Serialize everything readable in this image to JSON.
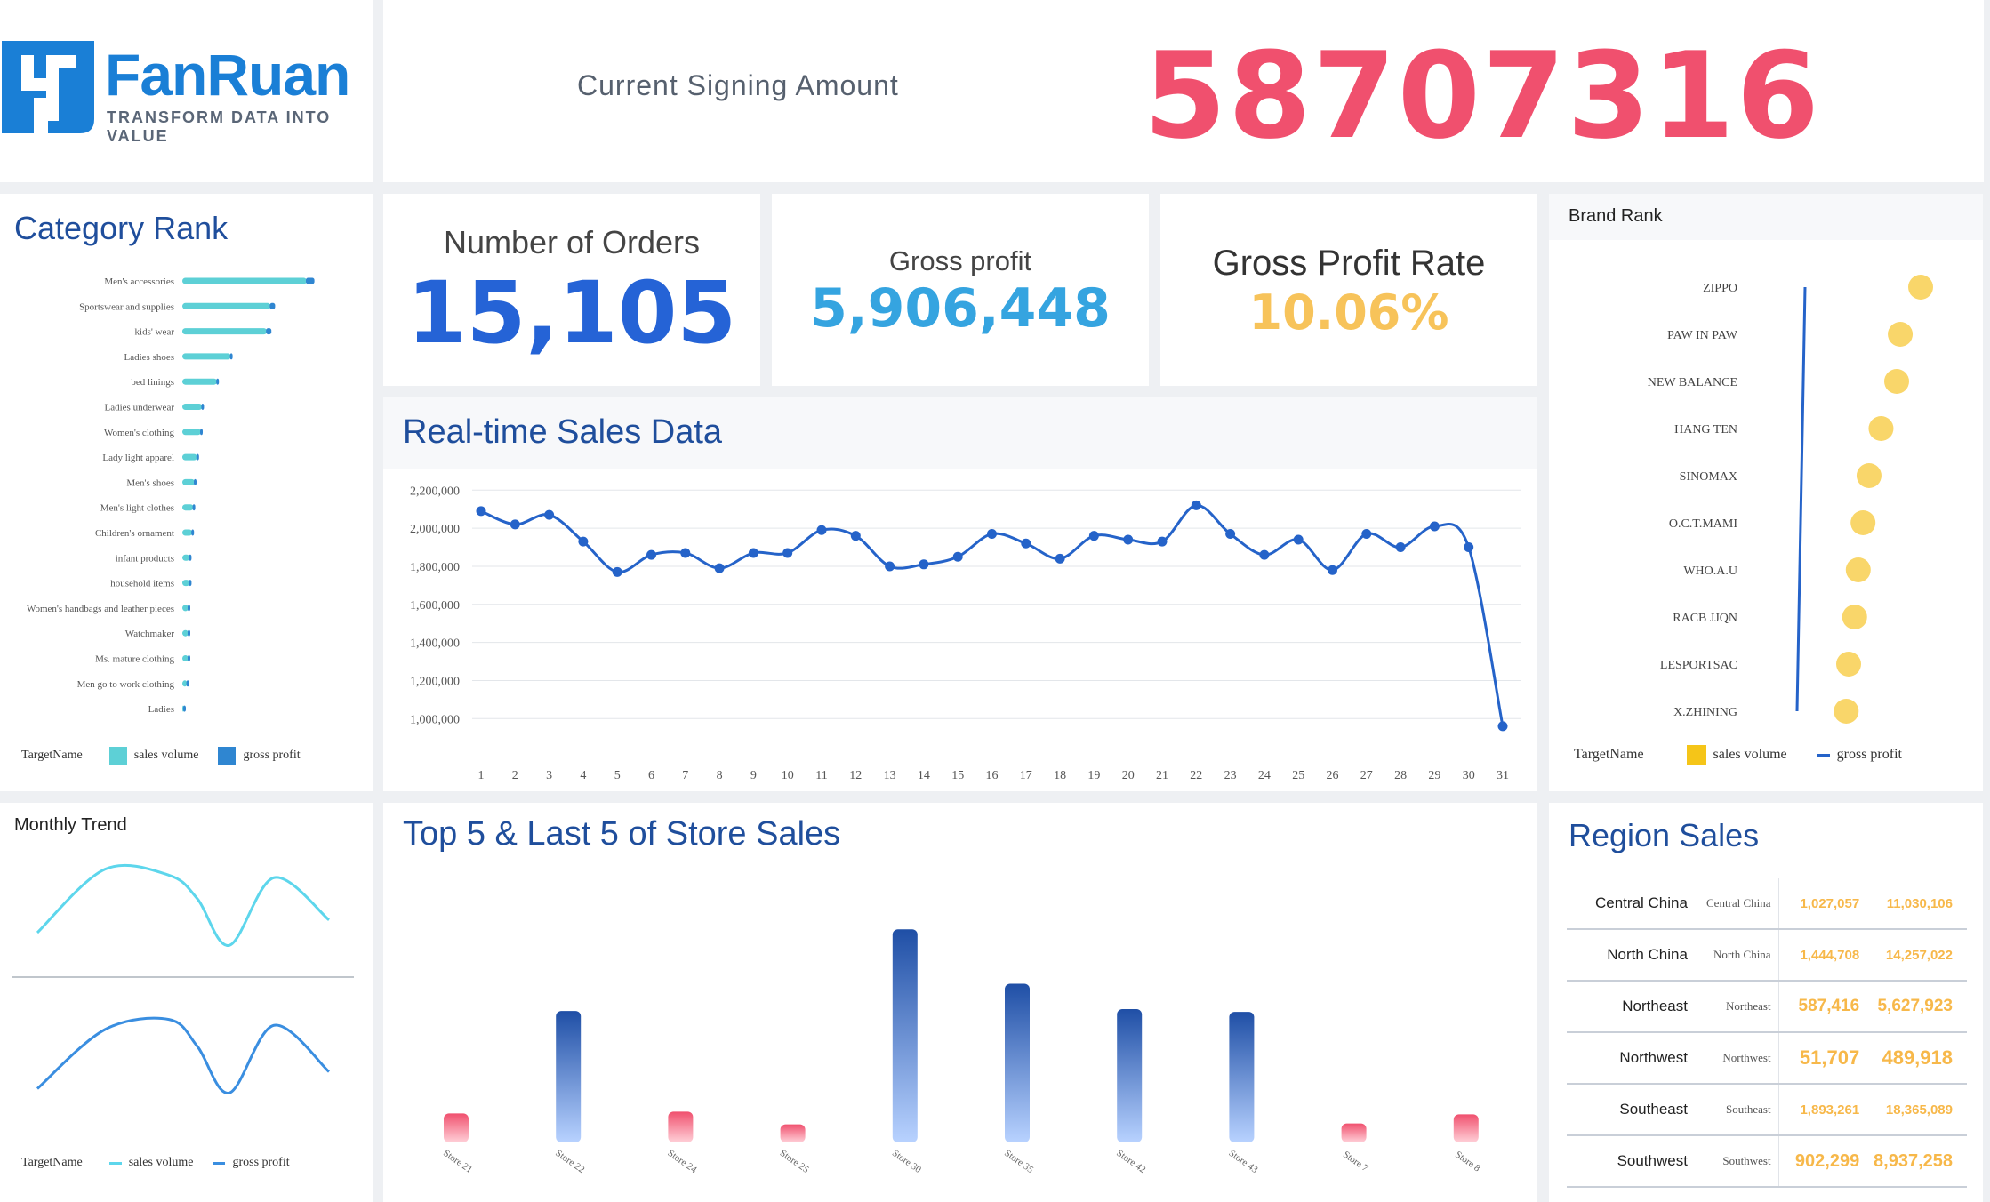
{
  "logo": {
    "name": "FanRuan",
    "tagline": "TRANSFORM DATA INTO VALUE",
    "color": "#1a7fd6"
  },
  "header": {
    "label": "Current Signing Amount",
    "amount": "58707316",
    "amount_color": "#f0506e"
  },
  "kpis": {
    "orders": {
      "label": "Number of Orders",
      "value": "15,105",
      "color": "#2563d6"
    },
    "gross_profit": {
      "label": "Gross profit",
      "value": "5,906,448",
      "color": "#35a4e0"
    },
    "gross_rate": {
      "label": "Gross Profit Rate",
      "value": "10.06%",
      "color": "#f7c35a"
    }
  },
  "category_rank": {
    "title": "Category Rank",
    "legend": {
      "target": "TargetName",
      "a": "sales volume",
      "b": "gross profit"
    },
    "chart_data": {
      "type": "bar",
      "categories": [
        "Men's accessories",
        "Sportswear and supplies",
        "kids' wear",
        "Ladies shoes",
        "bed linings",
        "Ladies underwear",
        "Women's clothing",
        "Lady light apparel",
        "Men's shoes",
        "Men's light clothes",
        "Children's ornament",
        "infant products",
        "household items",
        "Women's handbags and leather pieces",
        "Watchmaker",
        "Ms. mature clothing",
        "Men go to work clothing",
        "Ladies"
      ],
      "series": [
        {
          "name": "sales volume",
          "color": "#5dd0d6",
          "values": [
            100,
            71,
            68,
            39,
            28,
            16,
            15,
            12,
            10,
            9,
            8,
            6,
            6,
            5,
            5,
            5,
            4,
            1
          ]
        },
        {
          "name": "gross profit",
          "color": "#2f86d1",
          "values": [
            8,
            5,
            5,
            2,
            2,
            2,
            1,
            1,
            1,
            1,
            1,
            1,
            1,
            1,
            1,
            1,
            1,
            1
          ]
        }
      ]
    }
  },
  "realtime": {
    "title": "Real-time Sales Data",
    "chart_data": {
      "type": "line",
      "x": [
        1,
        2,
        3,
        4,
        5,
        6,
        7,
        8,
        9,
        10,
        11,
        12,
        13,
        14,
        15,
        16,
        17,
        18,
        19,
        20,
        21,
        22,
        23,
        24,
        25,
        26,
        27,
        28,
        29,
        30,
        31
      ],
      "values": [
        2090000,
        2020000,
        2070000,
        1930000,
        1770000,
        1860000,
        1870000,
        1790000,
        1870000,
        1870000,
        1990000,
        1960000,
        1800000,
        1810000,
        1850000,
        1970000,
        1920000,
        1840000,
        1960000,
        1940000,
        1930000,
        2120000,
        1970000,
        1860000,
        1940000,
        1780000,
        1970000,
        1900000,
        2010000,
        1900000,
        960000
      ],
      "yticks": [
        "2,200,000",
        "2,000,000",
        "1,800,000",
        "1,600,000",
        "1,400,000",
        "1,200,000",
        "1,000,000"
      ],
      "ytick_values": [
        2200000,
        2000000,
        1800000,
        1600000,
        1400000,
        1200000,
        1000000
      ],
      "color": "#2563c9"
    }
  },
  "brand_rank": {
    "title": "Brand Rank",
    "legend": {
      "target": "TargetName",
      "a": "sales volume",
      "b": "gross profit"
    },
    "chart_data": {
      "type": "scatter",
      "categories": [
        "ZIPPO",
        "PAW IN PAW",
        "NEW BALANCE",
        "HANG TEN",
        "SINOMAX",
        "O.C.T.MAMI",
        "WHO.A.U",
        "RACB JJQN",
        "LESPORTSAC",
        "X.ZHINING"
      ],
      "series": [
        {
          "name": "sales volume",
          "color": "#f9d66a",
          "values": [
            100,
            83,
            80,
            67,
            57,
            52,
            48,
            45,
            40,
            38
          ]
        },
        {
          "name": "gross profit",
          "color": "#2563c9",
          "values": [
            38,
            37,
            36,
            35,
            34,
            33,
            32,
            31,
            30,
            29
          ]
        }
      ]
    }
  },
  "monthly": {
    "title": "Monthly Trend",
    "legend": {
      "target": "TargetName",
      "a": "sales volume",
      "b": "gross profit"
    },
    "chart_data": {
      "type": "line",
      "x": [
        "",
        "",
        "",
        "",
        "",
        "",
        ""
      ],
      "series": [
        {
          "name": "sales volume",
          "color": "#5dd6ec",
          "values": [
            0.2,
            0.95,
            0.88,
            0.6,
            0.05,
            0.85,
            0.35
          ]
        },
        {
          "name": "gross profit",
          "color": "#3a8ee0",
          "values": [
            0.1,
            0.8,
            0.92,
            0.6,
            0.05,
            0.85,
            0.3
          ]
        }
      ]
    }
  },
  "stores": {
    "title": "Top 5 & Last 5 of Store Sales",
    "chart_data": {
      "type": "bar",
      "categories": [
        "Store 21",
        "Store 22",
        "Store 24",
        "Store 25",
        "Store 30",
        "Store 35",
        "Store 42",
        "Store 43",
        "Store 7",
        "Store 8"
      ],
      "values": [
        32,
        145,
        34,
        20,
        235,
        175,
        147,
        144,
        21,
        31
      ],
      "top_color": "#1f4fa6",
      "low_color": "#f0506e"
    }
  },
  "region": {
    "title": "Region Sales",
    "rows": [
      {
        "name": "Central China",
        "alt": "Central China",
        "v1": "1,027,057",
        "v2": "11,030,106"
      },
      {
        "name": "North China",
        "alt": "North China",
        "v1": "1,444,708",
        "v2": "14,257,022"
      },
      {
        "name": "Northeast",
        "alt": "Northeast",
        "v1": "587,416",
        "v2": "5,627,923"
      },
      {
        "name": "Northwest",
        "alt": "Northwest",
        "v1": "51,707",
        "v2": "489,918"
      },
      {
        "name": "Southeast",
        "alt": "Southeast",
        "v1": "1,893,261",
        "v2": "18,365,089"
      },
      {
        "name": "Southwest",
        "alt": "Southwest",
        "v1": "902,299",
        "v2": "8,937,258"
      }
    ]
  }
}
